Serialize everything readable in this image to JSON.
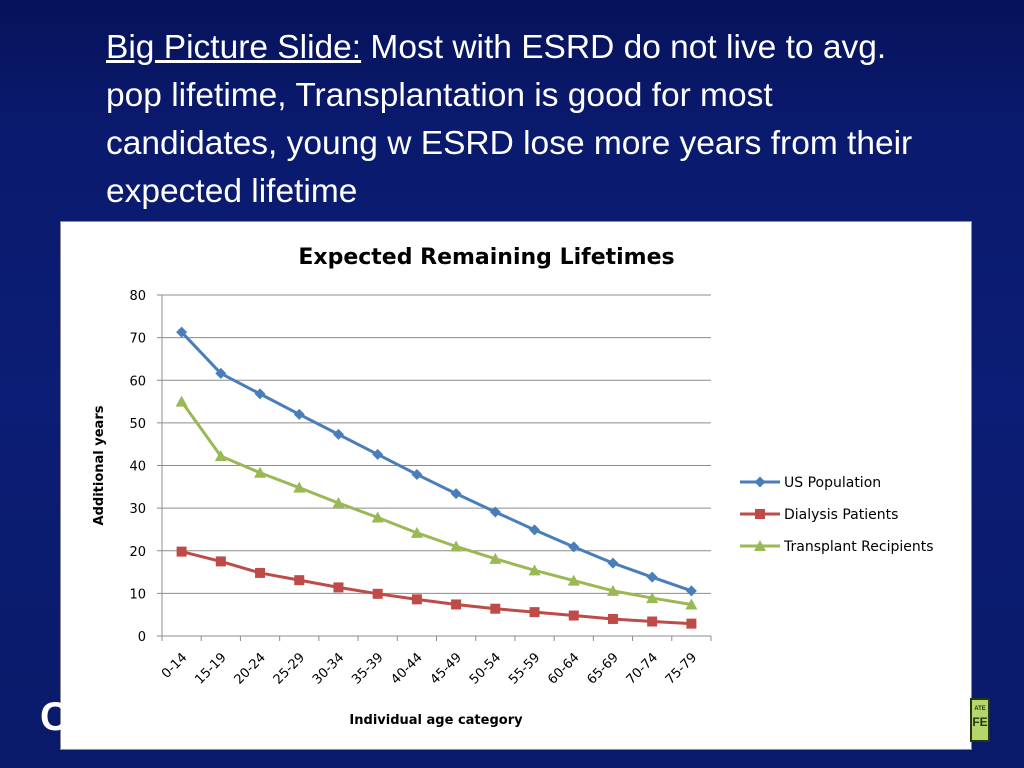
{
  "slide": {
    "title_lead": "Big Picture Slide:",
    "title_rest": " Most with ESRD do not live to avg. pop lifetime, Transplantation is good for most candidates, young w ESRD lose more years from their expected lifetime",
    "bottom_left_char": "C",
    "logo_line1": "ATE",
    "logo_line2": "FE"
  },
  "colors": {
    "us_population": "#4a7ebb",
    "dialysis": "#be4b48",
    "transplant": "#98b954",
    "grid": "#8c8c8c"
  },
  "chart_data": {
    "type": "line",
    "title": "Expected Remaining Lifetimes",
    "xlabel": "Individual age category",
    "ylabel": "Additional years",
    "ylim": [
      0,
      80
    ],
    "yticks": [
      0,
      10,
      20,
      30,
      40,
      50,
      60,
      70,
      80
    ],
    "grid": true,
    "legend_position": "right",
    "categories": [
      "0-14",
      "15-19",
      "20-24",
      "25-29",
      "30-34",
      "35-39",
      "40-44",
      "45-49",
      "50-54",
      "55-59",
      "60-64",
      "65-69",
      "70-74",
      "75-79"
    ],
    "series": [
      {
        "name": "US Population",
        "marker": "diamond",
        "values": [
          71.3,
          61.6,
          56.8,
          52.0,
          47.3,
          42.6,
          37.9,
          33.4,
          29.1,
          24.9,
          20.9,
          17.1,
          13.8,
          10.6
        ]
      },
      {
        "name": "Dialysis Patients",
        "marker": "square",
        "values": [
          19.8,
          17.5,
          14.8,
          13.1,
          11.4,
          9.9,
          8.6,
          7.4,
          6.4,
          5.6,
          4.8,
          4.0,
          3.4,
          2.9
        ]
      },
      {
        "name": "Transplant Recipients",
        "marker": "triangle",
        "values": [
          55.0,
          42.2,
          38.3,
          34.8,
          31.2,
          27.8,
          24.2,
          21.0,
          18.1,
          15.4,
          13.0,
          10.6,
          8.9,
          7.4
        ]
      }
    ]
  }
}
